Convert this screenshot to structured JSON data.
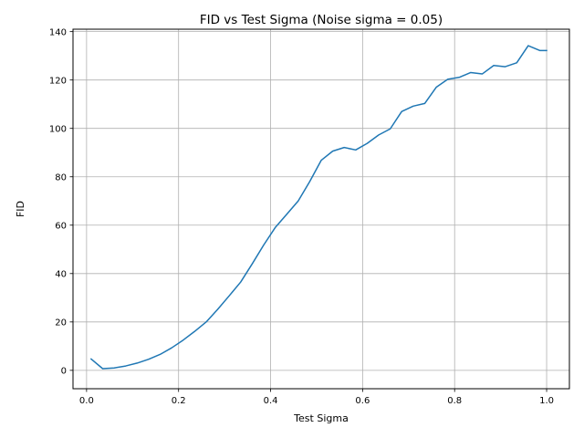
{
  "chart_data": {
    "type": "line",
    "title": "FID vs Test Sigma (Noise sigma = 0.05)",
    "xlabel": "Test Sigma",
    "ylabel": "FID",
    "xlim": [
      -0.0295,
      1.0495
    ],
    "ylim": [
      -7.6,
      141.0
    ],
    "xticks": [
      0.0,
      0.2,
      0.4,
      0.6,
      0.8,
      1.0
    ],
    "xtick_labels": [
      "0.0",
      "0.2",
      "0.4",
      "0.6",
      "0.8",
      "1.0"
    ],
    "yticks": [
      0,
      20,
      40,
      60,
      80,
      100,
      120,
      140
    ],
    "ytick_labels": [
      "0",
      "20",
      "40",
      "60",
      "80",
      "100",
      "120",
      "140"
    ],
    "grid": true,
    "series": [
      {
        "color": "#1f77b4",
        "x": [
          0.01,
          0.035,
          0.06,
          0.085,
          0.11,
          0.135,
          0.16,
          0.185,
          0.21,
          0.235,
          0.26,
          0.285,
          0.31,
          0.335,
          0.36,
          0.385,
          0.41,
          0.435,
          0.46,
          0.485,
          0.51,
          0.535,
          0.56,
          0.585,
          0.61,
          0.635,
          0.66,
          0.685,
          0.71,
          0.735,
          0.76,
          0.785,
          0.81,
          0.835,
          0.86,
          0.885,
          0.91,
          0.935,
          0.96,
          0.985,
          1.0
        ],
        "y": [
          4.7,
          0.7,
          1.0,
          1.8,
          3.0,
          4.6,
          6.6,
          9.3,
          12.5,
          16.1,
          20.0,
          25.2,
          30.8,
          36.5,
          44.0,
          51.8,
          59.0,
          64.5,
          70.0,
          78.0,
          86.8,
          90.6,
          92.1,
          91.1,
          93.8,
          97.3,
          99.8,
          107.0,
          109.2,
          110.3,
          117.0,
          120.3,
          121.1,
          123.1,
          122.5,
          126.0,
          125.5,
          127.1,
          134.2,
          132.2,
          132.2
        ]
      }
    ]
  }
}
